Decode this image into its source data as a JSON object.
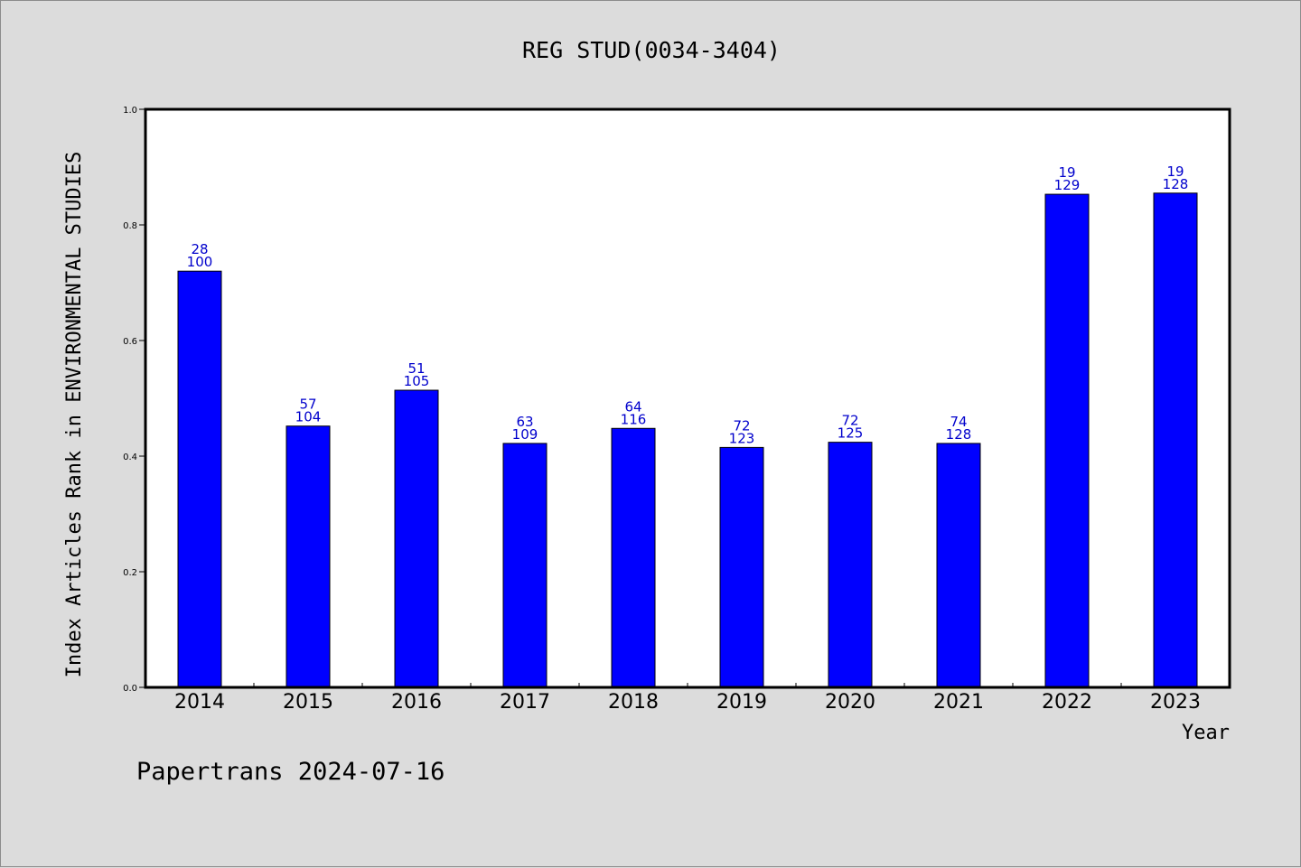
{
  "chart_data": {
    "type": "bar",
    "title": "REG STUD(0034-3404)",
    "ylabel": "Index Articles Rank in ENVIRONMENTAL STUDIES",
    "xlabel": "Year",
    "ylim": [
      0,
      1.0
    ],
    "yticks": [
      "0.0",
      "0.2",
      "0.4",
      "0.6",
      "0.8",
      "1.0"
    ],
    "grid": false,
    "categories": [
      "2014",
      "2015",
      "2016",
      "2017",
      "2018",
      "2019",
      "2020",
      "2021",
      "2022",
      "2023"
    ],
    "values": [
      0.72,
      0.452,
      0.514,
      0.422,
      0.448,
      0.415,
      0.424,
      0.422,
      0.853,
      0.855
    ],
    "rank_labels": [
      "28",
      "57",
      "51",
      "63",
      "64",
      "72",
      "72",
      "74",
      "19",
      "19"
    ],
    "total_labels": [
      "100",
      "104",
      "105",
      "109",
      "116",
      "123",
      "125",
      "128",
      "129",
      "128"
    ],
    "bar_color": "#0000ff",
    "label_color": "#0000cc"
  },
  "footer": "Papertrans 2024-07-16"
}
